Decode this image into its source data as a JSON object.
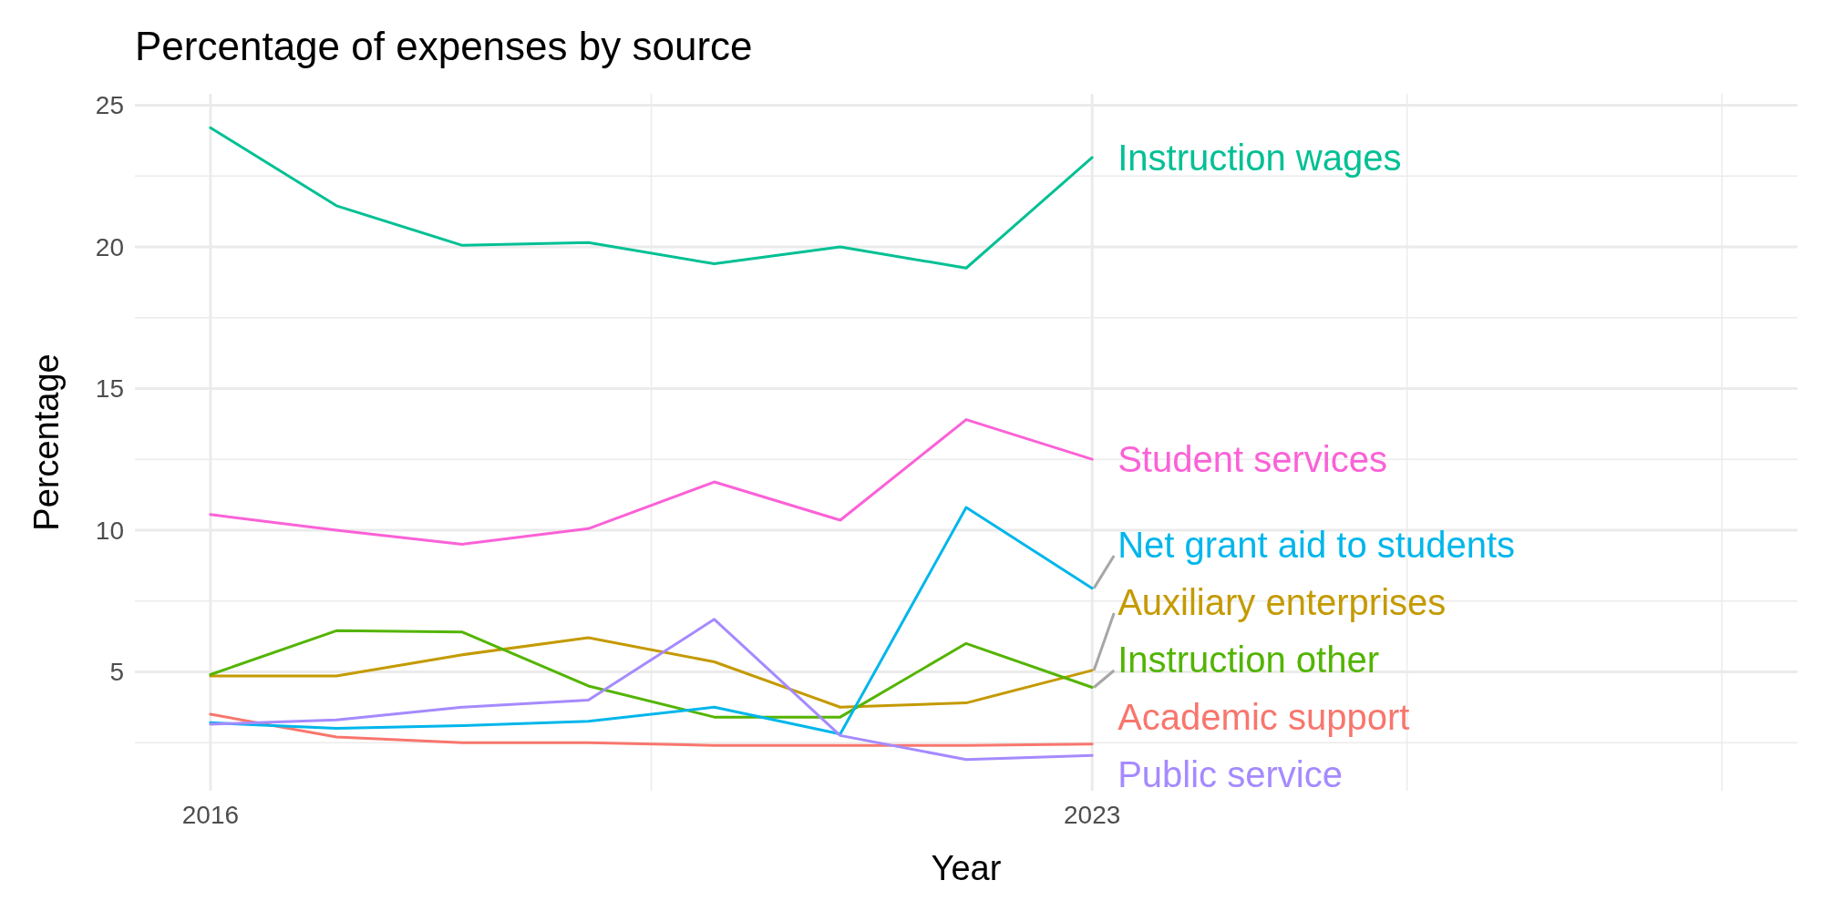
{
  "chart_data": {
    "type": "line",
    "title": "Percentage of expenses by source",
    "xlabel": "Year",
    "ylabel": "Percentage",
    "x": [
      2016,
      2017,
      2018,
      2019,
      2020,
      2021,
      2022,
      2023
    ],
    "xlim": [
      2015.4,
      2028.6
    ],
    "xticks": [
      2016,
      {
        "value": 2019.5,
        "label": null
      },
      2023,
      {
        "value": 2025.5,
        "label": null
      },
      {
        "value": 2028,
        "label": null
      }
    ],
    "ylim": [
      0.8,
      25.4
    ],
    "yticks": [
      {
        "value": 2.5,
        "label": null
      },
      5,
      {
        "value": 7.5,
        "label": null
      },
      10,
      {
        "value": 12.5,
        "label": null
      },
      15,
      {
        "value": 17.5,
        "label": null
      },
      20,
      {
        "value": 22.5,
        "label": null
      },
      25
    ],
    "grid": true,
    "legend": false,
    "marker": "none",
    "line_style": "solid",
    "series": [
      {
        "name": "Academic support",
        "color": "#f8766d",
        "values": [
          3.5,
          2.7,
          2.5,
          2.5,
          2.4,
          2.4,
          2.4,
          2.45
        ]
      },
      {
        "name": "Auxiliary enterprises",
        "color": "#c49a00",
        "values": [
          4.85,
          4.85,
          5.6,
          6.2,
          5.35,
          3.75,
          3.9,
          5.05
        ]
      },
      {
        "name": "Instruction other",
        "color": "#53b400",
        "values": [
          4.9,
          6.45,
          6.4,
          4.5,
          3.4,
          3.4,
          6.0,
          4.45
        ]
      },
      {
        "name": "Instruction wages",
        "color": "#00c094",
        "values": [
          24.2,
          21.45,
          20.05,
          20.15,
          19.4,
          20.0,
          19.25,
          23.15
        ]
      },
      {
        "name": "Net grant aid to students",
        "color": "#00b6eb",
        "values": [
          3.2,
          3.0,
          3.1,
          3.25,
          3.75,
          2.8,
          10.8,
          7.95
        ]
      },
      {
        "name": "Public service",
        "color": "#a58aff",
        "values": [
          3.15,
          3.3,
          3.75,
          4.0,
          6.85,
          2.75,
          1.9,
          2.05
        ]
      },
      {
        "name": "Student services",
        "color": "#fb61d7",
        "values": [
          10.55,
          10.0,
          9.5,
          10.05,
          11.7,
          10.35,
          13.9,
          12.5
        ]
      }
    ]
  }
}
